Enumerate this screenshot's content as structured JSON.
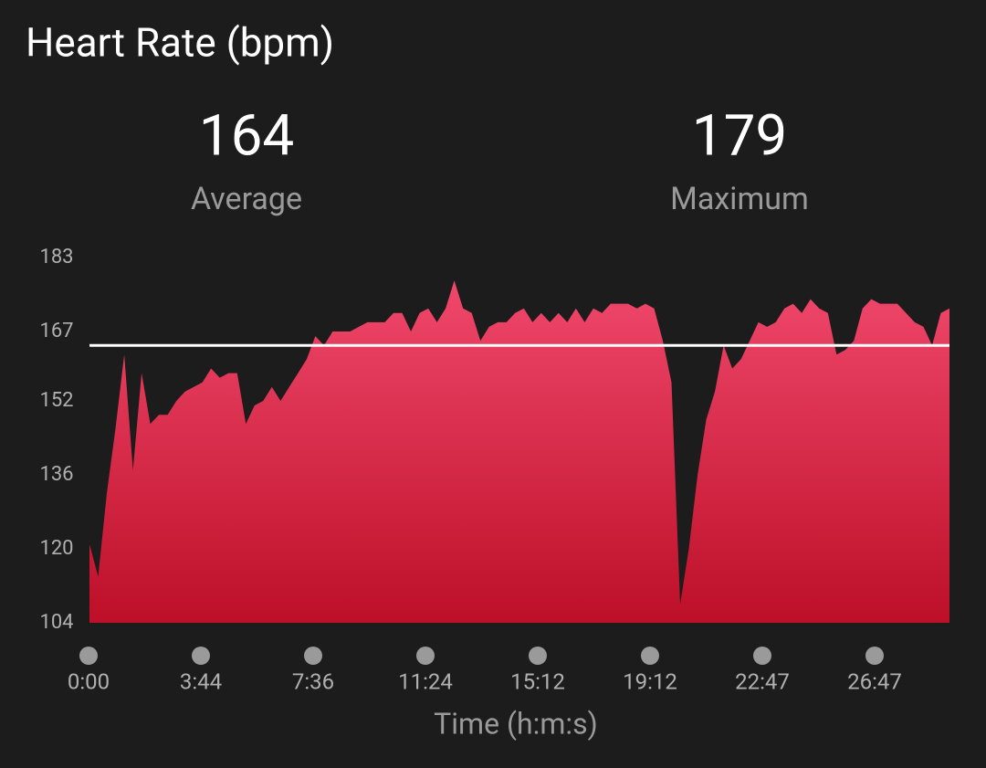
{
  "chart_data": {
    "type": "area",
    "title": "Heart Rate (bpm)",
    "stats": [
      {
        "value": 164,
        "label": "Average"
      },
      {
        "value": 179,
        "label": "Maximum"
      }
    ],
    "xlabel": "Time (h:m:s)",
    "xtick_labels": [
      "0:00",
      "3:44",
      "7:36",
      "11:24",
      "15:12",
      "19:12",
      "22:47",
      "26:47"
    ],
    "values": [
      121,
      114,
      132,
      146,
      162,
      137,
      158,
      147,
      149,
      149,
      152,
      154,
      155,
      156,
      159,
      157,
      158,
      158,
      147,
      151,
      152,
      155,
      152,
      155,
      158,
      161,
      166,
      164,
      167,
      167,
      167,
      168,
      169,
      169,
      169,
      171,
      171,
      167,
      171,
      172,
      169,
      172,
      178,
      172,
      171,
      165,
      168,
      169,
      169,
      171,
      172,
      169,
      171,
      169,
      171,
      169,
      172,
      169,
      172,
      171,
      173,
      173,
      173,
      172,
      173,
      172,
      165,
      156,
      108,
      120,
      136,
      148,
      154,
      164,
      159,
      161,
      165,
      169,
      168,
      169,
      172,
      173,
      171,
      174,
      172,
      171,
      162,
      163,
      165,
      172,
      174,
      173,
      173,
      173,
      171,
      169,
      168,
      164,
      171,
      172
    ],
    "color_top": "#f0486c",
    "color_bottom": "#bd0f28",
    "average_line_color": "#ffffff",
    "ylim": [
      104,
      183
    ],
    "yticks": [
      104,
      120,
      136,
      152,
      167,
      183
    ]
  }
}
